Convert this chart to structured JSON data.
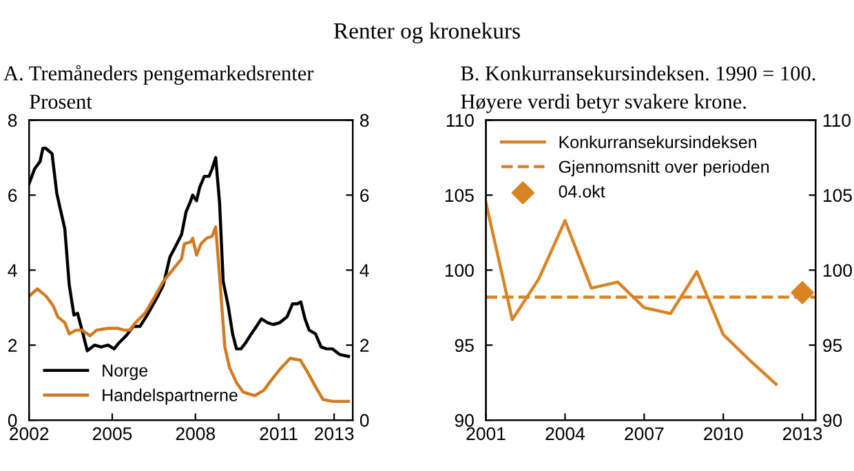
{
  "chart_data": [
    {
      "type": "line",
      "title": "A. Tremåneders pengemarkedsrenter",
      "ylabel": "Prosent",
      "annotations": [
        "Renter og kronekurs"
      ],
      "xlim": [
        2002,
        2013.67
      ],
      "xticks": [
        2002,
        2005,
        2008,
        2011,
        2013
      ],
      "ylim": [
        0,
        8
      ],
      "yticks": [
        0,
        2,
        4,
        6,
        8
      ],
      "y2lim": [
        0,
        8
      ],
      "y2ticks": [
        0,
        2,
        4,
        6,
        8
      ],
      "legend": "bottom left",
      "grid": false,
      "series": [
        {
          "name": "Norge",
          "color": "#000000",
          "x": [
            2002.0,
            2002.2,
            2002.4,
            2002.5,
            2002.6,
            2002.76,
            2002.83,
            2003.0,
            2003.09,
            2003.29,
            2003.45,
            2003.62,
            2003.75,
            2003.91,
            2004.1,
            2004.36,
            2004.6,
            2004.85,
            2005.07,
            2005.23,
            2005.5,
            2005.76,
            2006.0,
            2006.26,
            2006.6,
            2006.84,
            2007.08,
            2007.33,
            2007.5,
            2007.66,
            2007.83,
            2007.9,
            2008.04,
            2008.15,
            2008.32,
            2008.49,
            2008.6,
            2008.73,
            2008.87,
            2009.0,
            2009.18,
            2009.34,
            2009.48,
            2009.64,
            2009.8,
            2009.97,
            2010.2,
            2010.38,
            2010.6,
            2010.8,
            2011.04,
            2011.3,
            2011.5,
            2011.67,
            2011.8,
            2011.95,
            2012.1,
            2012.33,
            2012.53,
            2012.73,
            2012.94,
            2013.2,
            2013.52
          ],
          "values": [
            6.3,
            6.7,
            6.9,
            7.25,
            7.25,
            7.15,
            7.1,
            6.05,
            5.75,
            5.1,
            3.6,
            2.8,
            2.85,
            2.4,
            1.85,
            2.0,
            1.95,
            2.0,
            1.9,
            2.05,
            2.25,
            2.5,
            2.5,
            2.8,
            3.25,
            3.6,
            4.35,
            4.7,
            4.95,
            5.55,
            5.85,
            6.0,
            5.85,
            6.2,
            6.5,
            6.5,
            6.7,
            7.0,
            5.8,
            3.7,
            3.05,
            2.3,
            1.9,
            1.9,
            2.05,
            2.25,
            2.5,
            2.7,
            2.6,
            2.55,
            2.6,
            2.75,
            3.1,
            3.1,
            3.15,
            2.7,
            2.4,
            2.3,
            1.95,
            1.9,
            1.9,
            1.75,
            1.7
          ]
        },
        {
          "name": "Handelspartnerne",
          "color": "#d27a1f",
          "x": [
            2002.0,
            2002.3,
            2002.62,
            2002.87,
            2003.04,
            2003.29,
            2003.45,
            2003.7,
            2003.91,
            2004.2,
            2004.44,
            2004.85,
            2005.18,
            2005.43,
            2005.63,
            2005.84,
            2006.18,
            2006.5,
            2006.84,
            2007.17,
            2007.5,
            2007.6,
            2007.83,
            2007.9,
            2008.04,
            2008.2,
            2008.4,
            2008.6,
            2008.73,
            2008.87,
            2009.06,
            2009.23,
            2009.48,
            2009.72,
            2010.14,
            2010.47,
            2010.72,
            2011.04,
            2011.42,
            2011.78,
            2012.03,
            2012.36,
            2012.6,
            2012.94,
            2013.52
          ],
          "values": [
            3.3,
            3.5,
            3.3,
            3.05,
            2.75,
            2.6,
            2.3,
            2.4,
            2.4,
            2.25,
            2.4,
            2.45,
            2.45,
            2.4,
            2.4,
            2.6,
            2.85,
            3.25,
            3.7,
            4.0,
            4.3,
            4.7,
            4.75,
            4.85,
            4.4,
            4.7,
            4.85,
            4.9,
            5.15,
            3.85,
            1.95,
            1.4,
            1.0,
            0.75,
            0.65,
            0.8,
            1.05,
            1.35,
            1.65,
            1.6,
            1.3,
            0.85,
            0.55,
            0.5,
            0.5
          ]
        }
      ]
    },
    {
      "type": "line",
      "title": "B. Konkurransekursindeksen. 1990 = 100.",
      "subtitle": "Høyere verdi betyr svakere krone.",
      "xlim": [
        2001,
        2013.5
      ],
      "xticks": [
        2001,
        2004,
        2007,
        2010,
        2013
      ],
      "ylim": [
        90,
        110
      ],
      "yticks": [
        90,
        95,
        100,
        105,
        110
      ],
      "y2lim": [
        90,
        110
      ],
      "y2ticks": [
        90,
        95,
        100,
        105,
        110
      ],
      "legend": "top left",
      "grid": false,
      "ref_lines": [
        {
          "axis": "y",
          "value": 98.2,
          "label": "Gjennomsnitt over perioden",
          "color": "#d98324",
          "line_style": "dashed"
        }
      ],
      "series": [
        {
          "name": "Konkurransekursindeksen",
          "color": "#d98324",
          "x": [
            2001,
            2002,
            2003,
            2004,
            2005,
            2006,
            2007,
            2008,
            2009,
            2010,
            2011,
            2012
          ],
          "values": [
            104.5,
            96.7,
            99.4,
            103.3,
            98.8,
            99.2,
            97.5,
            97.1,
            99.9,
            95.7,
            94.0,
            92.4
          ]
        },
        {
          "name": "04.okt",
          "type": "scatter",
          "marker": "diamond",
          "color": "#d98324",
          "x": [
            2013
          ],
          "values": [
            98.5
          ]
        }
      ]
    }
  ]
}
